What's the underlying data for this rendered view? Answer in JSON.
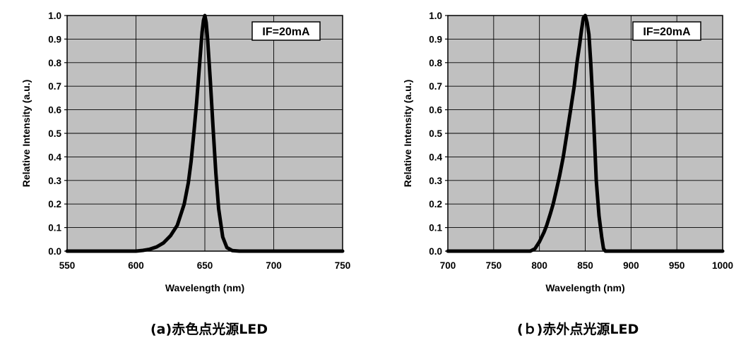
{
  "chart_data": [
    {
      "type": "line",
      "caption": "(a)赤色点光源LED",
      "annotation": "IF=20mA",
      "xlabel": "Wavelength (nm)",
      "ylabel": "Relative Intensity (a.u.)",
      "xlim": [
        550,
        750
      ],
      "ylim": [
        0.0,
        1.0
      ],
      "xticks": [
        "550",
        "600",
        "650",
        "700",
        "750"
      ],
      "yticks": [
        "0.0",
        "0.1",
        "0.2",
        "0.3",
        "0.4",
        "0.5",
        "0.6",
        "0.7",
        "0.8",
        "0.9",
        "1.0"
      ],
      "grid": true,
      "plot_bg": "#c0c0c0",
      "line_color": "#000000",
      "series": [
        {
          "x": [
            550,
            600,
            605,
            610,
            615,
            620,
            625,
            630,
            635,
            638,
            640,
            642,
            644,
            646,
            648,
            649,
            650,
            651,
            652,
            654,
            656,
            658,
            660,
            663,
            666,
            670,
            675,
            700,
            750
          ],
          "y": [
            0.0,
            0.0,
            0.003,
            0.008,
            0.018,
            0.035,
            0.065,
            0.11,
            0.2,
            0.29,
            0.38,
            0.5,
            0.63,
            0.78,
            0.93,
            0.98,
            1.0,
            0.97,
            0.9,
            0.72,
            0.52,
            0.33,
            0.18,
            0.06,
            0.015,
            0.002,
            0.0,
            0.0,
            0.0
          ]
        }
      ]
    },
    {
      "type": "line",
      "caption": "(ｂ)赤外点光源LED",
      "annotation": "IF=20mA",
      "xlabel": "Wavelength (nm)",
      "ylabel": "Relative Intensity (a.u.)",
      "xlim": [
        700,
        1000
      ],
      "ylim": [
        0.0,
        1.0
      ],
      "xticks": [
        "700",
        "750",
        "800",
        "850",
        "900",
        "950",
        "1000"
      ],
      "yticks": [
        "0.0",
        "0.1",
        "0.2",
        "0.3",
        "0.4",
        "0.5",
        "0.6",
        "0.7",
        "0.8",
        "0.9",
        "1.0"
      ],
      "grid": true,
      "plot_bg": "#c0c0c0",
      "line_color": "#000000",
      "series": [
        {
          "x": [
            700,
            790,
            795,
            800,
            805,
            808,
            812,
            815,
            818,
            822,
            826,
            830,
            834,
            838,
            841,
            844,
            846,
            848,
            850,
            852,
            854,
            856,
            858,
            860,
            862,
            865,
            868,
            870,
            872,
            900,
            1000
          ],
          "y": [
            0.0,
            0.0,
            0.01,
            0.04,
            0.08,
            0.11,
            0.16,
            0.2,
            0.25,
            0.32,
            0.4,
            0.5,
            0.6,
            0.7,
            0.8,
            0.88,
            0.94,
            0.99,
            1.0,
            0.97,
            0.92,
            0.8,
            0.65,
            0.48,
            0.3,
            0.15,
            0.06,
            0.01,
            0.0,
            0.0,
            0.0
          ]
        }
      ]
    }
  ]
}
